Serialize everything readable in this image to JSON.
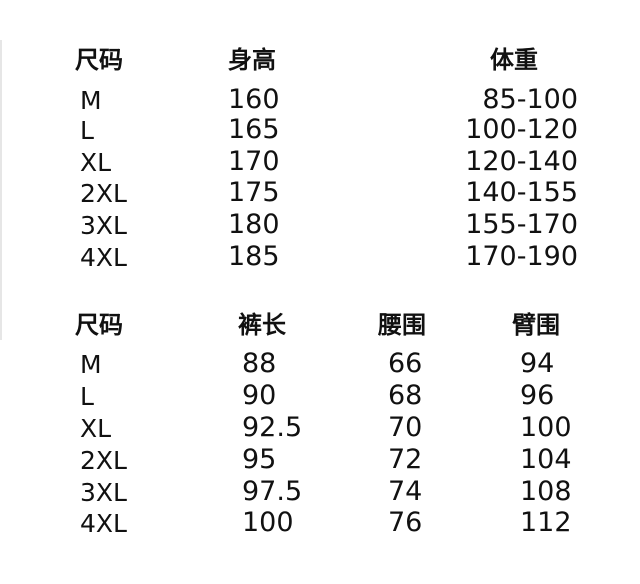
{
  "table1": {
    "headers": [
      "尺码",
      "身高",
      "体重"
    ],
    "rows": [
      [
        "M",
        "160",
        "85-100"
      ],
      [
        "L",
        "165",
        "100-120"
      ],
      [
        "XL",
        "170",
        "120-140"
      ],
      [
        "2XL",
        "175",
        "140-155"
      ],
      [
        "3XL",
        "180",
        "155-170"
      ],
      [
        "4XL",
        "185",
        "170-190"
      ]
    ]
  },
  "table2": {
    "headers": [
      "尺码",
      "裤长",
      "腰围",
      "臂围"
    ],
    "rows": [
      [
        "M",
        "88",
        "66",
        "94"
      ],
      [
        "L",
        "90",
        "68",
        "96"
      ],
      [
        "XL",
        "92.5",
        "70",
        "100"
      ],
      [
        "2XL",
        "95",
        "72",
        "104"
      ],
      [
        "3XL",
        "97.5",
        "74",
        "108"
      ],
      [
        "4XL",
        "100",
        "76",
        "112"
      ]
    ]
  }
}
